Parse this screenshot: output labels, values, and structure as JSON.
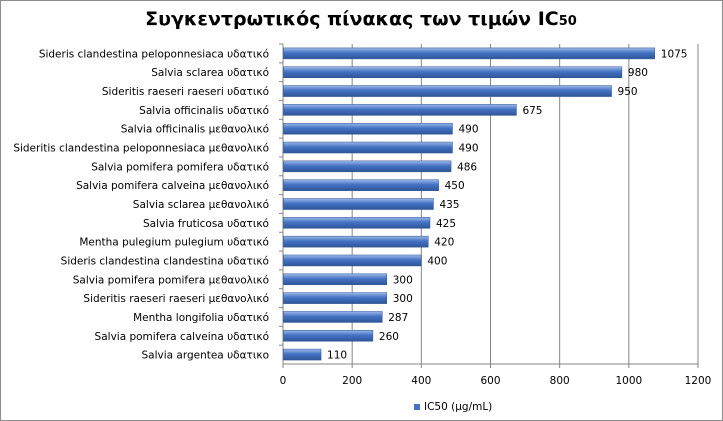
{
  "chart_data": {
    "type": "bar",
    "orientation": "horizontal",
    "title": "Συγκεντρωτικός πίνακας των τιμών IC",
    "title_subscript": "50",
    "categories": [
      "Sideris clandestina peloponnesiaca υδατικό",
      "Salvia  sclarea  υδατικό",
      "Sideritis raeseri raeseri υδατικό",
      "Salvia officinalis υδατικό",
      "Salvia officinalis μεθανολικό",
      "Sideritis clandestina peloponnesiaca μεθανολικό",
      "Salvia pomifera pomifera υδατικό",
      "Salvia pomifera calveina μεθανολικό",
      "Salvia sclarea μεθανολικό",
      "Salvia fruticosa υδατικό",
      "Mentha pulegium pulegium υδατικό",
      "Sideris clandestina clandestina  υδατικό",
      "Salvia pomifera pomifera μεθανολικό",
      "Sideritis raeseri raeseri μεθανολικό",
      "Mentha longifolia υδατικό",
      "Salvia pomifera calveina υδατικό",
      "Salvia argentea υδατικο"
    ],
    "series": [
      {
        "name": "IC50 (μg/mL)",
        "values": [
          1075,
          980,
          950,
          675,
          490,
          490,
          486,
          450,
          435,
          425,
          420,
          400,
          300,
          300,
          287,
          260,
          110
        ],
        "color": "#4472C4"
      }
    ],
    "data_labels": [
      "1075",
      "980",
      "950",
      "675",
      "490",
      "490",
      "486",
      "450",
      "435",
      "425",
      "420",
      "400",
      "300",
      "300",
      "287",
      "260",
      "110"
    ],
    "xlim": [
      0,
      1200
    ],
    "xticks": [
      0,
      200,
      400,
      600,
      800,
      1000,
      1200
    ],
    "xtick_labels": [
      "0",
      "200",
      "400",
      "600",
      "800",
      "1000",
      "1200"
    ],
    "grid": "vertical major gridlines",
    "legend_position": "bottom",
    "colors": {
      "bar_fill": "#4472C4",
      "bar_light": "#9DB9E8",
      "bar_dark": "#2E5596",
      "gridline": "#868686",
      "frame_border": "#8c8c8c"
    }
  }
}
